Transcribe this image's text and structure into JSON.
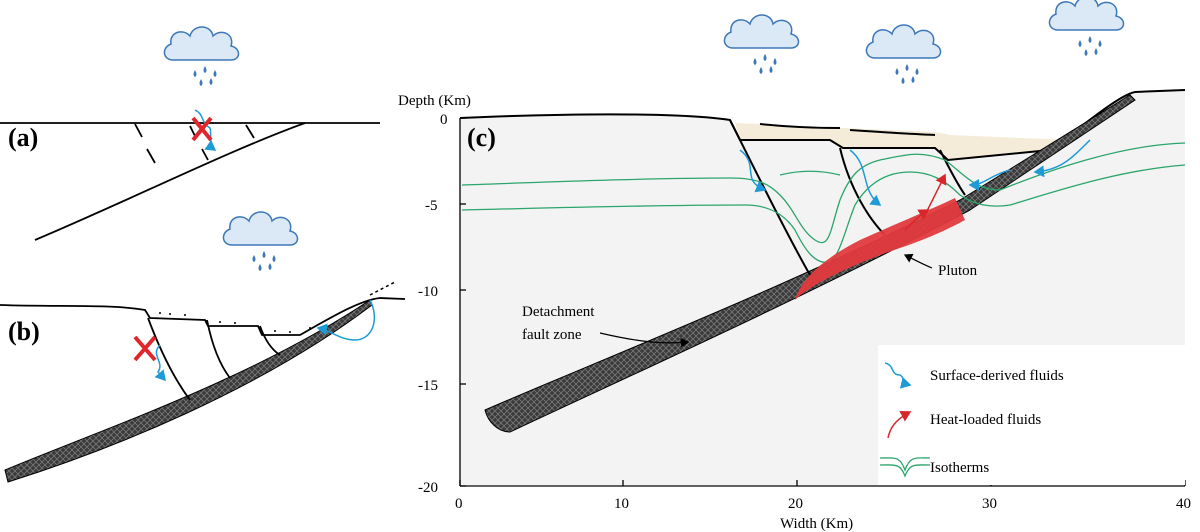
{
  "panels": {
    "a": "(a)",
    "b": "(b)",
    "c": "(c)"
  },
  "axes": {
    "y_title": "Depth (Km)",
    "x_title": "Width (Km)",
    "y_ticks": [
      "0",
      "-5",
      "-10",
      "-15",
      "-20"
    ],
    "x_ticks": [
      "0",
      "10",
      "20",
      "30",
      "40"
    ]
  },
  "annotations": {
    "detachment_line1": "Detachment",
    "detachment_line2": "fault zone",
    "pluton": "Pluton"
  },
  "legend": {
    "surface": "Surface-derived fluids",
    "heat": "Heat-loaded fluids",
    "isotherms": "Isotherms"
  },
  "colors": {
    "surface_fluid": "#1e9bd7",
    "heat_fluid": "#d9262c",
    "isotherm": "#2aa56b",
    "cloud_fill": "#dbe8f5",
    "cloud_stroke": "#3d78b8",
    "rain": "#3d78b8",
    "sediment": "#f4ecd9",
    "pluton": "#e23a3d",
    "cross": "#e0262b",
    "background_body": "#f3f3f3"
  },
  "icons": [
    "cloud-rain-icon",
    "cross-mark-icon",
    "fluid-arrow-icon",
    "heat-arrow-icon",
    "isotherm-icon"
  ]
}
